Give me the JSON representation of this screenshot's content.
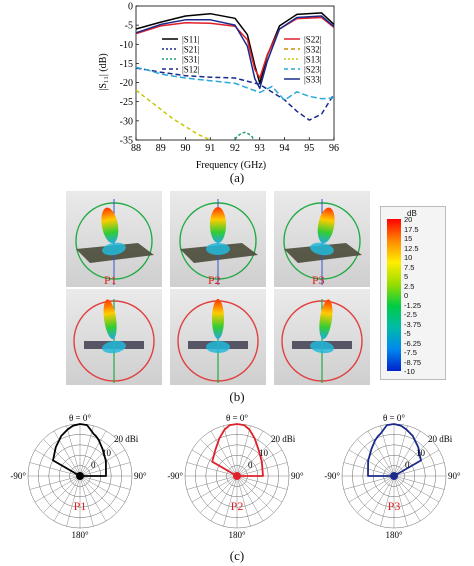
{
  "figure": {
    "caption_a": "(a)",
    "caption_b": "(b)",
    "caption_c": "(c)"
  },
  "chart_data": [
    {
      "type": "line",
      "xlabel": "Frequency (GHz)",
      "ylabel": "|S₁₁| (dB)",
      "xlim": [
        88,
        96
      ],
      "ylim": [
        -35,
        0
      ],
      "x_ticks": [
        "88",
        "89",
        "90",
        "91",
        "92",
        "93",
        "94",
        "95",
        "96"
      ],
      "y_ticks": [
        "0",
        "-5",
        "-10",
        "-15",
        "-20",
        "-25",
        "-30",
        "-35"
      ],
      "grid": false,
      "legend_left": [
        "|S11|",
        "|S21|",
        "|S31|",
        "|S12|"
      ],
      "legend_right": [
        "|S22|",
        "|S32|",
        "|S13|",
        "|S23|",
        "|S33|"
      ],
      "series": [
        {
          "name": "|S11|",
          "color": "#000000",
          "dash": "",
          "x": [
            88,
            89,
            90,
            91,
            92,
            92.5,
            92.8,
            93,
            93.3,
            93.8,
            94.5,
            95.5,
            96
          ],
          "y": [
            -6,
            -4.2,
            -2.6,
            -2.0,
            -3.2,
            -7.5,
            -15.5,
            -20.2,
            -13,
            -5.2,
            -2.2,
            -1.8,
            -4.8
          ]
        },
        {
          "name": "|S22|",
          "color": "#e0202a",
          "dash": "",
          "x": [
            88,
            89,
            90,
            91,
            92,
            92.5,
            92.8,
            93,
            93.3,
            93.8,
            94.5,
            95.5,
            96
          ],
          "y": [
            -7.2,
            -5.2,
            -4.4,
            -4.5,
            -5.3,
            -8.8,
            -16.5,
            -18.8,
            -12.8,
            -6.0,
            -3.3,
            -3.0,
            -5.6
          ]
        },
        {
          "name": "|S33|",
          "color": "#1a2a8a",
          "dash": "",
          "x": [
            88,
            89,
            90,
            91,
            92,
            92.5,
            92.8,
            93,
            93.3,
            93.8,
            94.5,
            95.5,
            96
          ],
          "y": [
            -7.0,
            -4.8,
            -3.6,
            -3.6,
            -5.0,
            -10.5,
            -19.0,
            -21.5,
            -14.5,
            -6.0,
            -3.0,
            -2.6,
            -5.4
          ]
        },
        {
          "name": "|S12|",
          "color": "#1a2a8a",
          "dash": "5,3",
          "x": [
            88,
            89,
            90,
            91,
            92,
            93,
            94,
            94.5,
            95,
            95.5,
            96
          ],
          "y": [
            -16.2,
            -17.3,
            -18.2,
            -18.6,
            -18.8,
            -20.5,
            -24.5,
            -27.5,
            -29.8,
            -28.2,
            -23.0
          ]
        },
        {
          "name": "|S23|",
          "color": "#2aa8d8",
          "dash": "6,3",
          "x": [
            88,
            88.5,
            89,
            90,
            91,
            92,
            93,
            93.5,
            94,
            94.5,
            95,
            95.5,
            96
          ],
          "y": [
            -16.0,
            -16.8,
            -17.8,
            -18.8,
            -19.5,
            -20.2,
            -22.6,
            -21.0,
            -24.6,
            -22.4,
            -23.6,
            -24.2,
            -24.0
          ]
        },
        {
          "name": "|S31|",
          "color": "#20a070",
          "dash": "3,2",
          "x": [
            92.0,
            92.1,
            92.25,
            92.4,
            92.55,
            92.7,
            92.75
          ],
          "y": [
            -34.8,
            -34.0,
            -33.3,
            -33.0,
            -33.4,
            -34.2,
            -34.9
          ]
        },
        {
          "name": "|S13|",
          "color": "#c8c800",
          "dash": "4,3",
          "x": [
            88,
            88.5,
            89,
            89.5,
            90,
            90.5,
            91
          ],
          "y": [
            -22.0,
            -24.5,
            -27.0,
            -29.5,
            -31.5,
            -33.5,
            -35.0
          ]
        }
      ]
    },
    {
      "type": "heatmap",
      "title": "dB",
      "colorbar_ticks": [
        "20",
        "17.5",
        "15",
        "12.5",
        "10",
        "7.5",
        "5",
        "2.5",
        "0",
        "-1.25",
        "-2.5",
        "-3.75",
        "-5",
        "-6.25",
        "-7.5",
        "-8.75",
        "-10"
      ],
      "panel_labels": [
        "P1",
        "P2",
        "P3"
      ]
    },
    {
      "type": "polar",
      "angle_labels": {
        "top": "θ = 0°",
        "left": "-90°",
        "right": "90°",
        "bottom": "180°"
      },
      "radial_labels": [
        "20 dBi",
        "10",
        "0"
      ],
      "panels": [
        {
          "name": "P1",
          "color": "#000000",
          "theta_deg": [
            -60,
            -40,
            -25,
            -15,
            -8,
            0,
            8,
            12,
            18,
            22,
            28,
            40,
            60,
            90
          ],
          "gain_dbi": [
            4,
            9,
            14,
            17,
            19,
            20,
            19.5,
            17,
            14,
            13,
            11,
            7,
            3,
            0
          ]
        },
        {
          "name": "P2",
          "color": "#e0202a",
          "theta_deg": [
            -60,
            -40,
            -25,
            -15,
            -8,
            0,
            8,
            15,
            25,
            40,
            60,
            90
          ],
          "gain_dbi": [
            2,
            6,
            12,
            17,
            19.5,
            20,
            19.5,
            17,
            12,
            6,
            2,
            0
          ]
        },
        {
          "name": "P3",
          "color": "#1a2a8a",
          "theta_deg": [
            -90,
            -60,
            -40,
            -28,
            -22,
            -18,
            -12,
            -8,
            0,
            8,
            15,
            25,
            40,
            60
          ],
          "gain_dbi": [
            0,
            3,
            7,
            11,
            13,
            14,
            17,
            19.5,
            20,
            19,
            17,
            14,
            9,
            4
          ]
        }
      ]
    }
  ]
}
